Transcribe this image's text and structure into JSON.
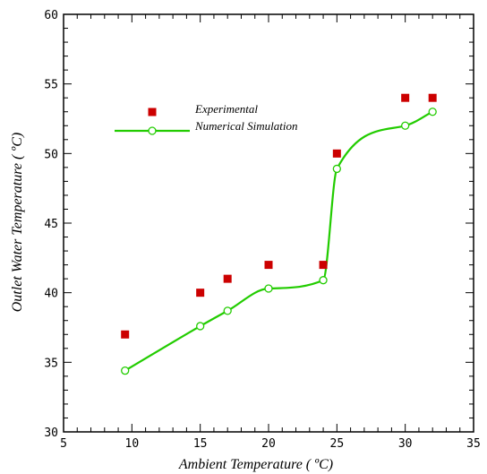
{
  "chart_data": {
    "type": "scatter",
    "xlabel": "Ambient Temperature ( ºC)",
    "ylabel": "Outlet Water Temperature ( ºC)",
    "xlim": [
      5,
      35
    ],
    "ylim": [
      30,
      60
    ],
    "x_ticks": [
      5,
      10,
      15,
      20,
      25,
      30,
      35
    ],
    "y_ticks": [
      30,
      35,
      40,
      45,
      50,
      55,
      60
    ],
    "grid": false,
    "legend_position": "upper-left",
    "series": [
      {
        "name": "Experimental",
        "marker": "filled-square",
        "color": "#cc0000",
        "x": [
          9.5,
          15,
          17,
          20,
          24,
          25,
          30,
          32
        ],
        "y": [
          37,
          40,
          41,
          42,
          42,
          50,
          54,
          54
        ]
      },
      {
        "name": "Numerical Simulation",
        "marker": "open-circle",
        "color": "#22cc00",
        "line": "smooth",
        "x": [
          9.5,
          15,
          17,
          20,
          24,
          25,
          30,
          32
        ],
        "y": [
          34.4,
          37.6,
          38.7,
          40.3,
          40.9,
          48.9,
          52,
          53
        ]
      }
    ]
  }
}
